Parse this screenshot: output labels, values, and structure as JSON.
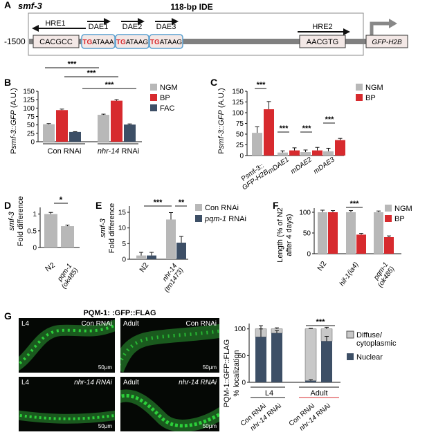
{
  "panels": {
    "A": "A",
    "B": "B",
    "C": "C",
    "D": "D",
    "E": "E",
    "F": "F",
    "G": "G"
  },
  "colors": {
    "ngm": "#b8b8b8",
    "bp": "#d72a2e",
    "fac": "#3d4f66",
    "con": "#b8b8b8",
    "pqm": "#3d4f66",
    "nuclear": "#3d4f66",
    "diffuse": "#c8c8c8",
    "red_text": "#d72a2e"
  },
  "panelA": {
    "gene": "smf-3",
    "ide_label": "118-bp IDE",
    "position": "-1500",
    "hre1": "HRE1",
    "hre1_seq": "CACGCC",
    "dae1": "DAE1",
    "dae2": "DAE2",
    "dae3": "DAE3",
    "dae1_seq": [
      "TG",
      "ATAAA"
    ],
    "dae2_seq": [
      "TG",
      "ATAAG"
    ],
    "dae3_seq": [
      "TG",
      "ATAAG"
    ],
    "hre2": "HRE2",
    "hre2_seq": "AACGTG",
    "reporter": "GFP-H2B"
  },
  "panelB": {
    "ylabel_prefix": "P",
    "ylabel_italic": "smf-3::GFP",
    "ylabel_suffix": " (A.U.)",
    "sig": [
      "***",
      "***",
      "***"
    ],
    "legend": [
      "NGM",
      "BP",
      "FAC"
    ],
    "groups": [
      "Con RNAi",
      "nhr-14 RNAi"
    ],
    "group2_italic": "nhr-14",
    "group2_rest": " RNAi",
    "ticks": [
      "0",
      "25",
      "50",
      "75",
      "100",
      "125",
      "150"
    ]
  },
  "panelC": {
    "ylabel_prefix": "P",
    "ylabel_italic": "smf-3::GFP",
    "ylabel_suffix": " (A.U.)",
    "legend": [
      "NGM",
      "BP"
    ],
    "sig": [
      "***",
      "***",
      "***",
      "***"
    ],
    "categories": [
      "Psmf-3::GFP-H2B",
      "mDAE1",
      "mDAE2",
      "mDAE3"
    ],
    "cat1_lines": [
      "Psmf-3::",
      "GFP-H2B"
    ],
    "ticks": [
      "0",
      "25",
      "50",
      "75",
      "100",
      "125",
      "150"
    ]
  },
  "panelD": {
    "ylabel1": "smf-3",
    "ylabel2": "Fold difference",
    "sig": "*",
    "categories": [
      "N2",
      "pqm-1 (ok485)"
    ],
    "cat2_lines": [
      "pqm-1",
      "(ok485)"
    ],
    "ticks": [
      "0",
      "0.5",
      "1"
    ]
  },
  "panelE": {
    "ylabel1": "smf-3",
    "ylabel2": "Fold difference",
    "sig": [
      "***",
      "**"
    ],
    "legend": [
      "Con RNAi",
      "pqm-1 RNAi"
    ],
    "legend2_italic": "pqm-1",
    "legend2_rest": " RNAi",
    "categories": [
      "N2",
      "nhr-14 (tm1473)"
    ],
    "cat2_lines": [
      "nhr-14",
      "(tm1473)"
    ],
    "ticks": [
      "0",
      "5",
      "10",
      "15"
    ]
  },
  "panelF": {
    "ylabel1": "Length (% of N2",
    "ylabel2": "after 4 days)",
    "sig": "***",
    "legend": [
      "NGM",
      "BP"
    ],
    "categories": [
      "N2",
      "hif-1(ia4)",
      "pqm-1 (ok485)"
    ],
    "cat3_lines": [
      "pqm-1",
      "(ok485)"
    ],
    "ticks": [
      "0",
      "50",
      "100"
    ]
  },
  "panelG": {
    "title": "PQM-1: :GFP::FLAG",
    "images": [
      {
        "stage": "L4",
        "rnai": "Con RNAi",
        "scale": "50μm"
      },
      {
        "stage": "Adult",
        "rnai": "Con RNAi",
        "scale": "50μm"
      },
      {
        "stage": "L4",
        "rnai": "nhr-14 RNAi",
        "scale": "50μm"
      },
      {
        "stage": "Adult",
        "rnai": "nhr-14 RNAi",
        "scale": "50μm"
      }
    ],
    "ylabel1": "PQM-1::GFP::FLAG",
    "ylabel2": "% localization",
    "sig": "***",
    "legend": [
      "Diffuse/",
      "cytoplasmic",
      "Nuclear"
    ],
    "stages": [
      "L4",
      "Adult"
    ],
    "categories": [
      "Con RNAi",
      "nhr-14 RNAi",
      "Con RNAi",
      "nhr-14 RNAi"
    ],
    "ticks": [
      "0",
      "50",
      "100"
    ]
  },
  "chart_data": [
    {
      "panel": "B",
      "type": "bar",
      "categories": [
        "Con RNAi",
        "nhr-14 RNAi"
      ],
      "ylim": [
        0,
        150
      ],
      "series": [
        {
          "name": "NGM",
          "values": [
            52,
            80
          ],
          "err": [
            2,
            2
          ]
        },
        {
          "name": "BP",
          "values": [
            94,
            122
          ],
          "err": [
            3,
            3
          ]
        },
        {
          "name": "FAC",
          "values": [
            29,
            51
          ],
          "err": [
            1,
            2
          ]
        }
      ]
    },
    {
      "panel": "C",
      "type": "bar",
      "categories": [
        "Psmf-3::GFP-H2B",
        "mDAE1",
        "mDAE2",
        "mDAE3"
      ],
      "ylim": [
        0,
        150
      ],
      "series": [
        {
          "name": "NGM",
          "values": [
            53,
            7,
            8,
            10
          ],
          "err": [
            14,
            4,
            5,
            7
          ]
        },
        {
          "name": "BP",
          "values": [
            108,
            12,
            12,
            36
          ],
          "err": [
            18,
            6,
            7,
            4
          ]
        }
      ]
    },
    {
      "panel": "D",
      "type": "bar",
      "categories": [
        "N2",
        "pqm-1 (ok485)"
      ],
      "ylim": [
        0,
        1.2
      ],
      "series": [
        {
          "values": [
            1.0,
            0.64
          ],
          "err": [
            0.05,
            0.03
          ]
        }
      ]
    },
    {
      "panel": "E",
      "type": "bar",
      "categories": [
        "N2",
        "nhr-14 (tm1473)"
      ],
      "ylim": [
        0,
        17
      ],
      "series": [
        {
          "name": "Con RNAi",
          "values": [
            1.2,
            12.7
          ],
          "err": [
            1.0,
            2.2
          ]
        },
        {
          "name": "pqm-1 RNAi",
          "values": [
            1.2,
            5.3
          ],
          "err": [
            1.0,
            2.0
          ]
        }
      ]
    },
    {
      "panel": "F",
      "type": "bar",
      "categories": [
        "N2",
        "hif-1(ia4)",
        "pqm-1 (ok485)"
      ],
      "ylim": [
        0,
        110
      ],
      "series": [
        {
          "name": "NGM",
          "values": [
            100,
            100,
            100
          ],
          "err": [
            5,
            4,
            3
          ]
        },
        {
          "name": "BP",
          "values": [
            100,
            46,
            40
          ],
          "err": [
            4,
            3,
            3
          ]
        }
      ]
    },
    {
      "panel": "G",
      "type": "bar",
      "stacked": true,
      "categories": [
        "L4 Con RNAi",
        "L4 nhr-14 RNAi",
        "Adult Con RNAi",
        "Adult nhr-14 RNAi"
      ],
      "ylim": [
        0,
        100
      ],
      "series": [
        {
          "name": "Nuclear",
          "values": [
            85,
            92,
            3,
            77
          ],
          "err": [
            15,
            5,
            2,
            9
          ]
        },
        {
          "name": "Diffuse/cytoplasmic",
          "values": [
            15,
            8,
            97,
            23
          ],
          "err": [
            12,
            4,
            2,
            6
          ]
        }
      ]
    }
  ]
}
